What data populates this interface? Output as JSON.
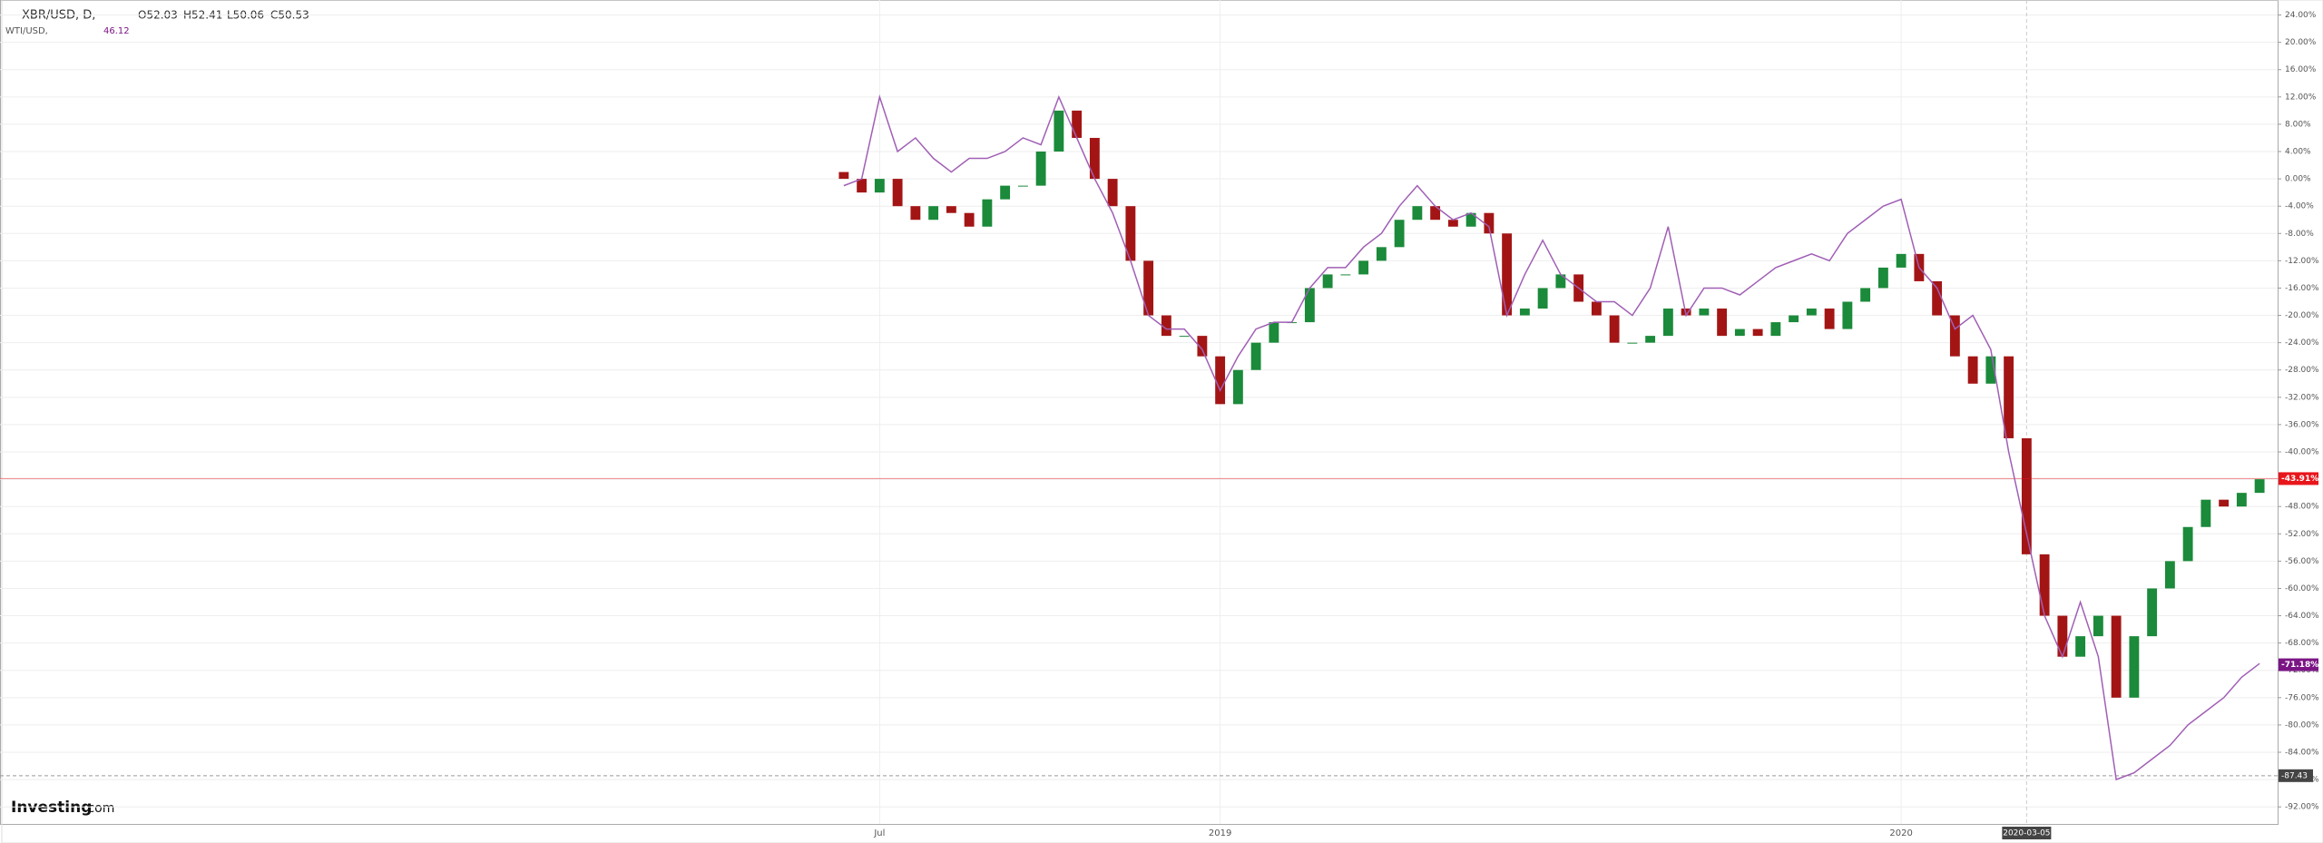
{
  "header": {
    "symbol": "XBR/USD, D,",
    "ohlc": [
      "O52.03",
      "H52.41",
      "L50.06",
      "C50.53"
    ],
    "compare": "WTI/USD,",
    "compare_value": "46.12"
  },
  "watermark": [
    "Investing",
    ".com"
  ],
  "chart_data": {
    "type": "candlestick",
    "categories": [
      null,
      null,
      "Jul",
      null,
      null,
      null,
      null,
      null,
      null,
      null,
      null,
      null,
      null,
      null,
      null,
      null,
      null,
      null,
      null,
      null,
      null,
      "2019",
      null,
      null,
      null,
      null,
      null,
      null,
      null,
      null,
      null,
      null,
      null,
      null,
      null,
      null,
      null,
      null,
      null,
      null,
      null,
      null,
      null,
      null,
      null,
      null,
      null,
      null,
      null,
      null,
      null,
      null,
      null,
      null,
      null,
      null,
      null,
      null,
      null,
      "2020",
      null,
      null,
      null,
      null,
      null,
      null,
      "2020-03-05",
      null,
      null,
      null,
      null,
      null,
      null,
      null,
      null,
      null,
      null,
      null,
      null,
      null
    ],
    "series": [
      {
        "name": "XBR/USD",
        "up_color": "#1b8a3a",
        "down_color": "#a31515",
        "open": [
          1,
          0,
          -2,
          0,
          -4,
          -6,
          -4,
          -5,
          -7,
          -3,
          -1,
          -1,
          4,
          10,
          6,
          0,
          -4,
          -12,
          -20,
          -23,
          -23,
          -26,
          -33,
          -28,
          -24,
          -21,
          -21,
          -16,
          -14,
          -14,
          -12,
          -10,
          -6,
          -4,
          -6,
          -7,
          -5,
          -8,
          -20,
          -19,
          -16,
          -14,
          -18,
          -20,
          -24,
          -24,
          -23,
          -19,
          -20,
          -19,
          -23,
          -22,
          -23,
          -21,
          -20,
          -19,
          -22,
          -18,
          -16,
          -13,
          -11,
          -15,
          -20,
          -26,
          -30,
          -26,
          -38,
          -55,
          -64,
          -70,
          -67,
          -64,
          -76,
          -67,
          -60,
          -56,
          -51,
          -47,
          -48,
          -46
        ],
        "values": [
          0,
          -2,
          0,
          -4,
          -6,
          -4,
          -5,
          -7,
          -3,
          -1,
          -1,
          4,
          10,
          6,
          0,
          -4,
          -12,
          -20,
          -23,
          -23,
          -26,
          -33,
          -28,
          -24,
          -21,
          -21,
          -16,
          -14,
          -14,
          -12,
          -10,
          -6,
          -4,
          -6,
          -7,
          -5,
          -8,
          -20,
          -19,
          -16,
          -14,
          -18,
          -20,
          -24,
          -24,
          -23,
          -19,
          -20,
          -19,
          -23,
          -22,
          -23,
          -21,
          -20,
          -19,
          -22,
          -18,
          -16,
          -13,
          -11,
          -15,
          -20,
          -26,
          -30,
          -26,
          -38,
          -55,
          -64,
          -70,
          -67,
          -64,
          -76,
          -67,
          -60,
          -56,
          -51,
          -47,
          -48,
          -46,
          -44
        ],
        "last": {
          "value": -43.91,
          "label": "-43.91%"
        },
        "last_color": "#e8151b"
      },
      {
        "name": "WTI/USD",
        "type": "line",
        "color": "#a05fb5",
        "values": [
          -1,
          0,
          12,
          4,
          6,
          3,
          1,
          3,
          3,
          4,
          6,
          5,
          12,
          6,
          0,
          -5,
          -12,
          -20,
          -22,
          -22,
          -25,
          -31,
          -26,
          -22,
          -21,
          -21,
          -16,
          -13,
          -13,
          -10,
          -8,
          -4,
          -1,
          -4,
          -6,
          -5,
          -7,
          -20,
          -14,
          -9,
          -14,
          -16,
          -18,
          -18,
          -20,
          -16,
          -7,
          -20,
          -16,
          -16,
          -17,
          -15,
          -13,
          -12,
          -11,
          -12,
          -8,
          -6,
          -4,
          -3,
          -13,
          -16,
          -22,
          -20,
          -25,
          -40,
          -52,
          -64,
          -70,
          -62,
          -70,
          -88,
          -87,
          -85,
          -83,
          -80,
          -78,
          -76,
          -73,
          -71
        ],
        "last": {
          "value": -71.18,
          "label": "-71.18%"
        },
        "last_color": "#7b1585"
      }
    ],
    "markers": [
      {
        "value": -87.43,
        "label": "-87.43"
      }
    ],
    "ylim": [
      -94.5,
      26.2
    ],
    "yticks": [
      {
        "value": 24,
        "label": "24.00%"
      },
      {
        "value": 20,
        "label": "20.00%"
      },
      {
        "value": 16,
        "label": "16.00%"
      },
      {
        "value": 12,
        "label": "12.00%"
      },
      {
        "value": 8,
        "label": "8.00%"
      },
      {
        "value": 4,
        "label": "4.00%"
      },
      {
        "value": 0,
        "label": "0.00%"
      },
      {
        "value": -4,
        "label": "-4.00%"
      },
      {
        "value": -8,
        "label": "-8.00%"
      },
      {
        "value": -12,
        "label": "-12.00%"
      },
      {
        "value": -16,
        "label": "-16.00%"
      },
      {
        "value": -20,
        "label": "-20.00%"
      },
      {
        "value": -24,
        "label": "-24.00%"
      },
      {
        "value": -28,
        "label": "-28.00%"
      },
      {
        "value": -32,
        "label": "-32.00%"
      },
      {
        "value": -36,
        "label": "-36.00%"
      },
      {
        "value": -40,
        "label": "-40.00%"
      },
      {
        "value": -44,
        "label": "-44.00%"
      },
      {
        "value": -48,
        "label": "-48.00%"
      },
      {
        "value": -52,
        "label": "-52.00%"
      },
      {
        "value": -56,
        "label": "-56.00%"
      },
      {
        "value": -60,
        "label": "-60.00%"
      },
      {
        "value": -64,
        "label": "-64.00%"
      },
      {
        "value": -68,
        "label": "-68.00%"
      },
      {
        "value": -72,
        "label": "-72.00%"
      },
      {
        "value": -76,
        "label": "-76.00%"
      },
      {
        "value": -80,
        "label": "-80.00%"
      },
      {
        "value": -84,
        "label": "-84.00%"
      },
      {
        "value": -88,
        "label": "-88.00%"
      },
      {
        "value": -92,
        "label": "-92.00%"
      }
    ],
    "grid": true
  }
}
